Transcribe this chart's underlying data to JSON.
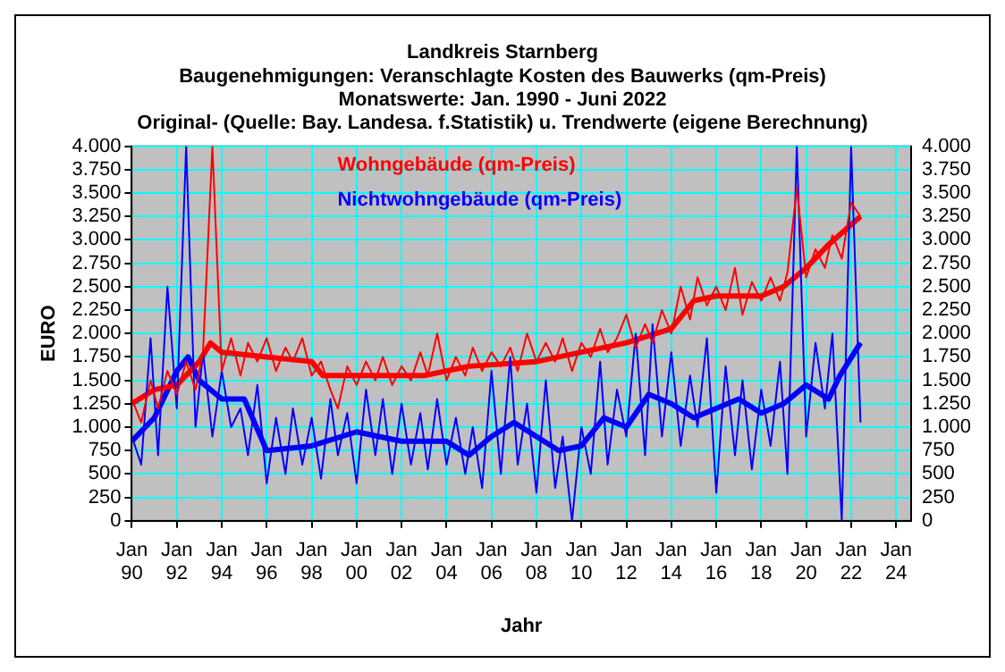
{
  "chart_data": {
    "type": "line",
    "title": [
      "Landkreis Starnberg",
      "Baugenehmigungen: Veranschlagte Kosten des Bauwerks (qm-Preis)",
      "Monatswerte: Jan. 1990 - Juni 2022",
      "Original- (Quelle: Bay. Landesa. f.Statistik) u. Trendwerte (eigene Berechnung)"
    ],
    "xlabel": "Jahr",
    "ylabel": "EURO",
    "xlim": [
      "1990-01",
      "2024-09"
    ],
    "xticks": [
      {
        "value": "1990-01",
        "label": "Jan 90"
      },
      {
        "value": "1992-01",
        "label": "Jan 92"
      },
      {
        "value": "1994-01",
        "label": "Jan 94"
      },
      {
        "value": "1996-01",
        "label": "Jan 96"
      },
      {
        "value": "1998-01",
        "label": "Jan 98"
      },
      {
        "value": "2000-01",
        "label": "Jan 00"
      },
      {
        "value": "2002-01",
        "label": "Jan 02"
      },
      {
        "value": "2004-01",
        "label": "Jan 04"
      },
      {
        "value": "2006-01",
        "label": "Jan 06"
      },
      {
        "value": "2008-01",
        "label": "Jan 08"
      },
      {
        "value": "2010-01",
        "label": "Jan 10"
      },
      {
        "value": "2012-01",
        "label": "Jan 12"
      },
      {
        "value": "2014-01",
        "label": "Jan 14"
      },
      {
        "value": "2016-01",
        "label": "Jan 16"
      },
      {
        "value": "2018-01",
        "label": "Jan 18"
      },
      {
        "value": "2020-01",
        "label": "Jan 20"
      },
      {
        "value": "2022-01",
        "label": "Jan 22"
      },
      {
        "value": "2024-01",
        "label": "Jan 24"
      }
    ],
    "ylim": [
      0,
      4000
    ],
    "yticks": [
      0,
      250,
      500,
      750,
      {
        "value": 1000,
        "label": "1.000"
      },
      {
        "value": 1250,
        "label": "1.250"
      },
      {
        "value": 1500,
        "label": "1.500"
      },
      {
        "value": 1750,
        "label": "1.750"
      },
      {
        "value": 2000,
        "label": "2.000"
      },
      {
        "value": 2250,
        "label": "2.250"
      },
      {
        "value": 2500,
        "label": "2.500"
      },
      {
        "value": 2750,
        "label": "2.750"
      },
      {
        "value": 3000,
        "label": "3.000"
      },
      {
        "value": 3250,
        "label": "3.250"
      },
      {
        "value": 3500,
        "label": "3.500"
      },
      {
        "value": 3750,
        "label": "3.750"
      },
      {
        "value": 4000,
        "label": "4.000"
      }
    ],
    "y2lim": [
      0,
      4000
    ],
    "y2ticks": [
      0,
      250,
      500,
      750,
      {
        "value": 1000,
        "label": "1.000"
      },
      {
        "value": 1250,
        "label": "1.250"
      },
      {
        "value": 1500,
        "label": "1.500"
      },
      {
        "value": 1750,
        "label": "1.750"
      },
      {
        "value": 2000,
        "label": "2.000"
      },
      {
        "value": 2250,
        "label": "2.250"
      },
      {
        "value": 2500,
        "label": "2.500"
      },
      {
        "value": 2750,
        "label": "2.750"
      },
      {
        "value": 3000,
        "label": "3.000"
      },
      {
        "value": 3250,
        "label": "3.250"
      },
      {
        "value": 3500,
        "label": "3.500"
      },
      {
        "value": 3750,
        "label": "3.750"
      },
      {
        "value": 4000,
        "label": "4.000"
      }
    ],
    "grid": true,
    "legend": "top left",
    "marker": "none",
    "line_style": "solid",
    "series": [
      {
        "name": "Wohngebäude (qm-Preis)",
        "color": "#ff0000",
        "x": [
          "1990-01",
          "1990-06",
          "1990-11",
          "1991-03",
          "1991-08",
          "1992-01",
          "1992-06",
          "1992-11",
          "1993-03",
          "1993-08",
          "1994-01",
          "1994-06",
          "1994-11",
          "1995-03",
          "1995-08",
          "1996-01",
          "1996-06",
          "1996-11",
          "1997-03",
          "1997-08",
          "1998-01",
          "1998-06",
          "1998-11",
          "1999-03",
          "1999-08",
          "2000-01",
          "2000-06",
          "2000-11",
          "2001-03",
          "2001-08",
          "2002-01",
          "2002-06",
          "2002-11",
          "2003-03",
          "2003-08",
          "2004-01",
          "2004-06",
          "2004-11",
          "2005-03",
          "2005-08",
          "2006-01",
          "2006-06",
          "2006-11",
          "2007-03",
          "2007-08",
          "2008-01",
          "2008-06",
          "2008-11",
          "2009-03",
          "2009-08",
          "2010-01",
          "2010-06",
          "2010-11",
          "2011-03",
          "2011-08",
          "2012-01",
          "2012-06",
          "2012-11",
          "2013-03",
          "2013-08",
          "2014-01",
          "2014-06",
          "2014-11",
          "2015-03",
          "2015-08",
          "2016-01",
          "2016-06",
          "2016-11",
          "2017-03",
          "2017-08",
          "2018-01",
          "2018-06",
          "2018-11",
          "2019-03",
          "2019-08",
          "2020-01",
          "2020-06",
          "2020-11",
          "2021-03",
          "2021-08",
          "2022-01",
          "2022-06"
        ],
        "values": [
          1300,
          1050,
          1500,
          1200,
          1600,
          1350,
          1700,
          1400,
          1800,
          4000,
          1600,
          1950,
          1550,
          1900,
          1700,
          1950,
          1600,
          1850,
          1700,
          1950,
          1550,
          1700,
          1400,
          1200,
          1650,
          1450,
          1700,
          1500,
          1750,
          1450,
          1650,
          1500,
          1800,
          1550,
          2000,
          1500,
          1750,
          1550,
          1850,
          1600,
          1800,
          1650,
          1850,
          1600,
          2000,
          1700,
          1900,
          1700,
          1950,
          1600,
          1900,
          1750,
          2050,
          1800,
          1950,
          2200,
          1850,
          2100,
          1900,
          2250,
          2000,
          2500,
          2150,
          2600,
          2300,
          2500,
          2250,
          2700,
          2200,
          2550,
          2350,
          2600,
          2350,
          2650,
          3550,
          2600,
          2900,
          2700,
          3050,
          2800,
          3400,
          3250
        ]
      },
      {
        "name": "Nichtwohngebäude (qm-Preis)",
        "color": "#0000ff",
        "x": [
          "1990-01",
          "1990-06",
          "1990-11",
          "1991-03",
          "1991-08",
          "1992-01",
          "1992-06",
          "1992-11",
          "1993-03",
          "1993-08",
          "1994-01",
          "1994-06",
          "1994-11",
          "1995-03",
          "1995-08",
          "1996-01",
          "1996-06",
          "1996-11",
          "1997-03",
          "1997-08",
          "1998-01",
          "1998-06",
          "1998-11",
          "1999-03",
          "1999-08",
          "2000-01",
          "2000-06",
          "2000-11",
          "2001-03",
          "2001-08",
          "2002-01",
          "2002-06",
          "2002-11",
          "2003-03",
          "2003-08",
          "2004-01",
          "2004-06",
          "2004-11",
          "2005-03",
          "2005-08",
          "2006-01",
          "2006-06",
          "2006-11",
          "2007-03",
          "2007-08",
          "2008-01",
          "2008-06",
          "2008-11",
          "2009-03",
          "2009-08",
          "2010-01",
          "2010-06",
          "2010-11",
          "2011-03",
          "2011-08",
          "2012-01",
          "2012-06",
          "2012-11",
          "2013-03",
          "2013-08",
          "2014-01",
          "2014-06",
          "2014-11",
          "2015-03",
          "2015-08",
          "2016-01",
          "2016-06",
          "2016-11",
          "2017-03",
          "2017-08",
          "2018-01",
          "2018-06",
          "2018-11",
          "2019-03",
          "2019-08",
          "2020-01",
          "2020-06",
          "2020-11",
          "2021-03",
          "2021-08",
          "2022-01",
          "2022-06"
        ],
        "values": [
          900,
          600,
          1950,
          700,
          2500,
          1200,
          4000,
          1000,
          1800,
          900,
          1600,
          1000,
          1200,
          700,
          1450,
          400,
          1100,
          500,
          1200,
          600,
          1100,
          450,
          1300,
          700,
          1150,
          400,
          1400,
          700,
          1300,
          500,
          1250,
          600,
          1150,
          550,
          1300,
          600,
          1100,
          500,
          1000,
          350,
          1600,
          500,
          1750,
          600,
          1250,
          300,
          1500,
          350,
          900,
          0,
          1000,
          500,
          1700,
          600,
          1400,
          900,
          2000,
          700,
          2100,
          900,
          1800,
          800,
          1550,
          1000,
          1950,
          300,
          1650,
          700,
          1500,
          550,
          1400,
          800,
          1700,
          500,
          4000,
          900,
          1900,
          1200,
          2000,
          0,
          4000,
          1050
        ]
      },
      {
        "color": "#ff0000",
        "x": [
          "1990-01",
          "1991-01",
          "1992-01",
          "1993-01",
          "1993-07",
          "1994-01",
          "1996-01",
          "1998-01",
          "1998-07",
          "2000-01",
          "2003-01",
          "2005-01",
          "2008-01",
          "2010-01",
          "2012-01",
          "2014-01",
          "2015-01",
          "2016-01",
          "2018-01",
          "2019-01",
          "2020-01",
          "2021-01",
          "2022-06"
        ],
        "values": [
          1250,
          1400,
          1450,
          1700,
          1900,
          1800,
          1750,
          1700,
          1550,
          1550,
          1550,
          1650,
          1700,
          1800,
          1900,
          2050,
          2350,
          2400,
          2400,
          2500,
          2700,
          2950,
          3250
        ]
      },
      {
        "color": "#0000ff",
        "x": [
          "1990-01",
          "1991-01",
          "1992-01",
          "1992-07",
          "1993-01",
          "1994-01",
          "1995-01",
          "1996-01",
          "1998-01",
          "2000-01",
          "2002-01",
          "2003-01",
          "2004-01",
          "2005-01",
          "2006-01",
          "2007-01",
          "2008-01",
          "2009-01",
          "2010-01",
          "2011-01",
          "2012-01",
          "2013-01",
          "2014-01",
          "2015-01",
          "2016-01",
          "2017-01",
          "2018-01",
          "2019-01",
          "2020-01",
          "2021-01",
          "2021-07",
          "2022-06"
        ],
        "values": [
          850,
          1100,
          1600,
          1750,
          1500,
          1300,
          1300,
          750,
          800,
          950,
          850,
          850,
          850,
          700,
          900,
          1050,
          900,
          750,
          800,
          1100,
          1000,
          1350,
          1250,
          1100,
          1200,
          1300,
          1150,
          1250,
          1450,
          1300,
          1550,
          1900
        ]
      }
    ]
  }
}
